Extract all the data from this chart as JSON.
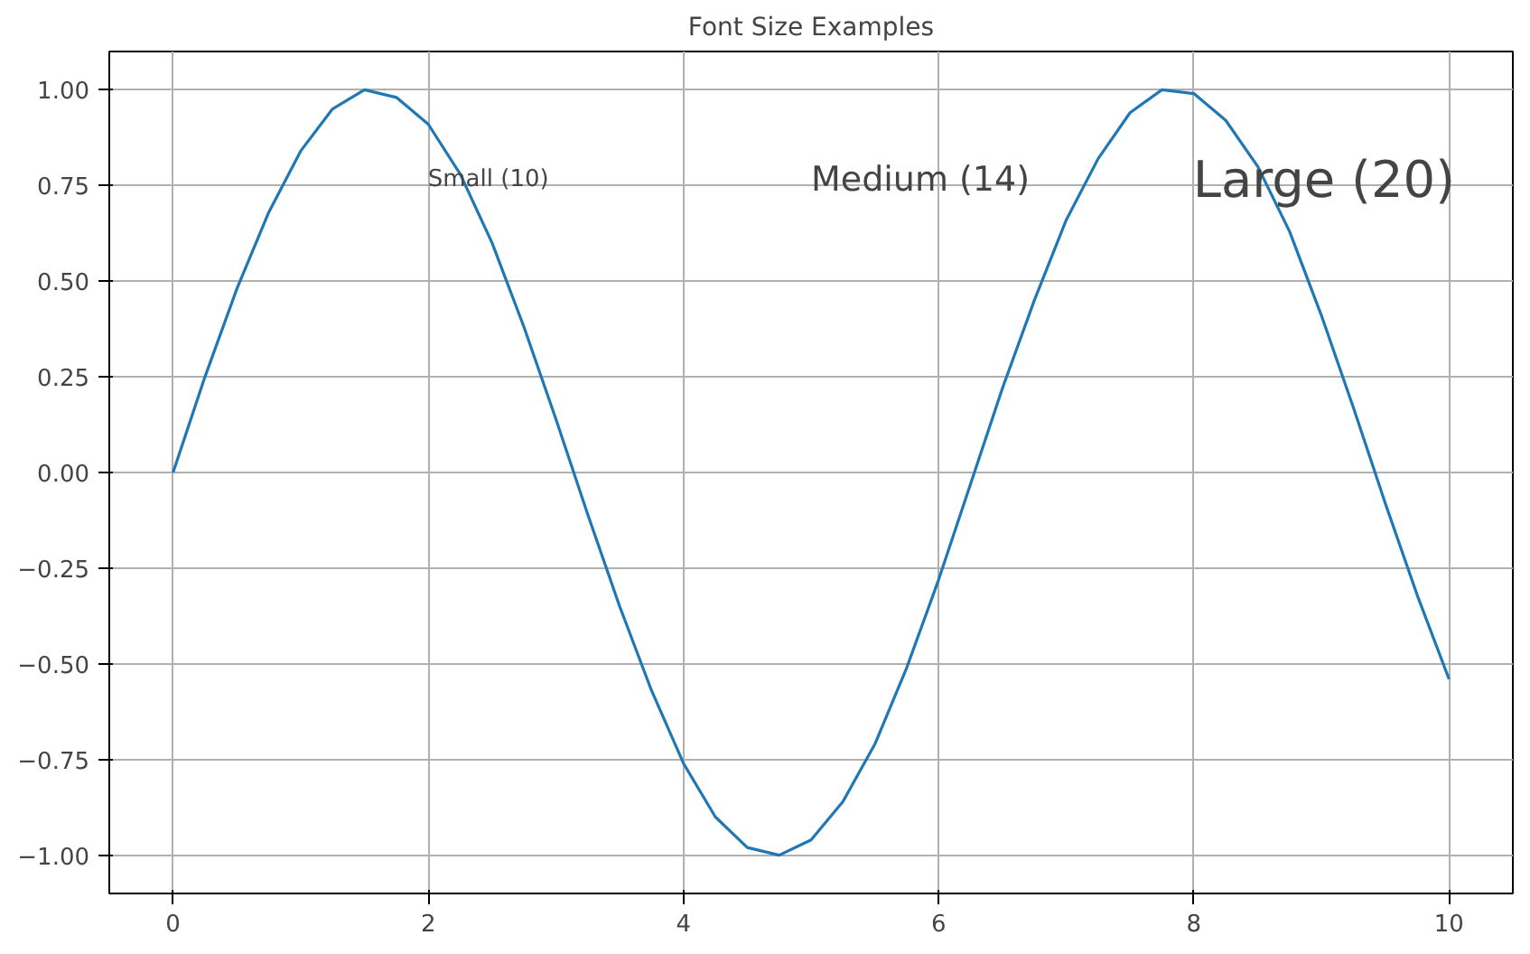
{
  "chart_data": {
    "type": "line",
    "title": "Font Size Examples",
    "x": [
      0,
      0.25,
      0.5,
      0.75,
      1,
      1.25,
      1.5,
      1.75,
      2,
      2.25,
      2.5,
      2.75,
      3,
      3.25,
      3.5,
      3.75,
      4,
      4.25,
      4.5,
      4.75,
      5,
      5.25,
      5.5,
      5.75,
      6,
      6.25,
      6.5,
      6.75,
      7,
      7.25,
      7.5,
      7.75,
      8,
      8.25,
      8.5,
      8.75,
      9,
      9.25,
      9.5,
      9.75,
      10
    ],
    "series": [
      {
        "color": "#1f77b4",
        "values": [
          0,
          0.25,
          0.48,
          0.68,
          0.84,
          0.95,
          1.0,
          0.98,
          0.91,
          0.78,
          0.6,
          0.38,
          0.14,
          -0.11,
          -0.35,
          -0.57,
          -0.76,
          -0.9,
          -0.98,
          -1.0,
          -0.96,
          -0.86,
          -0.71,
          -0.51,
          -0.28,
          -0.03,
          0.22,
          0.45,
          0.66,
          0.82,
          0.94,
          1.0,
          0.99,
          0.92,
          0.8,
          0.63,
          0.41,
          0.17,
          -0.08,
          -0.32,
          -0.54
        ]
      }
    ],
    "xlim": [
      -0.5,
      10.5
    ],
    "ylim": [
      -1.1,
      1.1
    ],
    "xticks": [
      0,
      2,
      4,
      6,
      8,
      10
    ],
    "yticks": [
      {
        "value": -1,
        "label": "−1.00"
      },
      {
        "value": -0.75,
        "label": "−0.75"
      },
      {
        "value": -0.5,
        "label": "−0.50"
      },
      {
        "value": -0.25,
        "label": "−0.25"
      },
      {
        "value": 0,
        "label": "0.00"
      },
      {
        "value": 0.25,
        "label": "0.25"
      },
      {
        "value": 0.5,
        "label": "0.50"
      },
      {
        "value": 0.75,
        "label": "0.75"
      },
      {
        "value": 1,
        "label": "1.00"
      }
    ],
    "annotations": [
      "Small (10)",
      "Medium (14)",
      "Large (20)"
    ],
    "grid": true,
    "line_style": "solid",
    "marker": "none"
  }
}
